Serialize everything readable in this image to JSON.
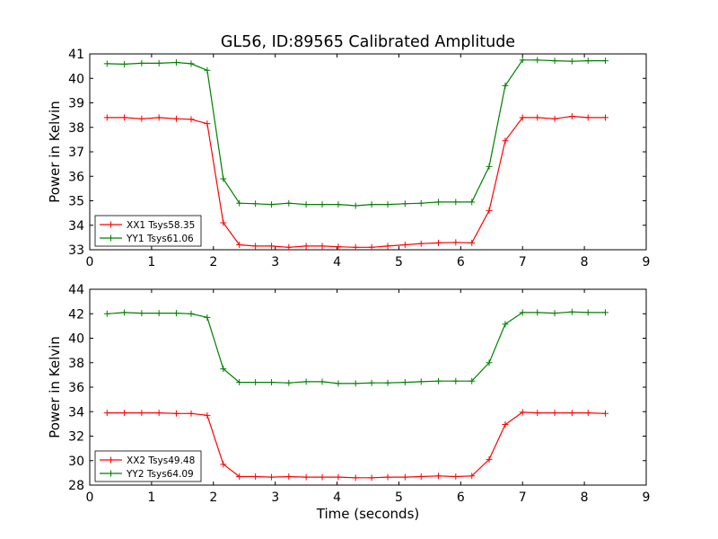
{
  "title": "GL56, ID:89565 Calibrated Amplitude",
  "colors": {
    "red": "#ff0000",
    "green": "#008000"
  },
  "chart_data": [
    {
      "type": "line",
      "xlabel": "",
      "ylabel": "Power in Kelvin",
      "xlim": [
        0,
        9
      ],
      "ylim": [
        33,
        41
      ],
      "xticks": [
        0,
        1,
        2,
        3,
        4,
        5,
        6,
        7,
        8,
        9
      ],
      "yticks": [
        33,
        34,
        35,
        36,
        37,
        38,
        39,
        40,
        41
      ],
      "grid": false,
      "legend_position": "lower-left",
      "x": [
        0.28,
        0.56,
        0.84,
        1.12,
        1.4,
        1.64,
        1.9,
        2.16,
        2.42,
        2.68,
        2.94,
        3.22,
        3.5,
        3.76,
        4.02,
        4.3,
        4.56,
        4.82,
        5.1,
        5.36,
        5.64,
        5.92,
        6.18,
        6.46,
        6.72,
        7.0,
        7.24,
        7.52,
        7.8,
        8.06,
        8.34
      ],
      "series": [
        {
          "name": "XX1 Tsys58.35",
          "color": "#ff0000",
          "values": [
            38.4,
            38.4,
            38.35,
            38.4,
            38.35,
            38.33,
            38.15,
            34.1,
            33.2,
            33.15,
            33.15,
            33.1,
            33.15,
            33.15,
            33.12,
            33.1,
            33.1,
            33.15,
            33.2,
            33.25,
            33.28,
            33.3,
            33.28,
            34.6,
            37.45,
            38.4,
            38.4,
            38.35,
            38.45,
            38.4,
            38.4
          ]
        },
        {
          "name": "YY1 Tsys61.06",
          "color": "#008000",
          "values": [
            40.6,
            40.58,
            40.62,
            40.62,
            40.65,
            40.6,
            40.33,
            35.9,
            34.9,
            34.88,
            34.85,
            34.9,
            34.85,
            34.85,
            34.85,
            34.8,
            34.85,
            34.85,
            34.88,
            34.9,
            34.95,
            34.95,
            34.95,
            36.4,
            39.7,
            40.75,
            40.75,
            40.72,
            40.7,
            40.72,
            40.72
          ]
        }
      ]
    },
    {
      "type": "line",
      "xlabel": "Time (seconds)",
      "ylabel": "Power in Kelvin",
      "xlim": [
        0,
        9
      ],
      "ylim": [
        28,
        44
      ],
      "xticks": [
        0,
        1,
        2,
        3,
        4,
        5,
        6,
        7,
        8,
        9
      ],
      "yticks": [
        28,
        30,
        32,
        34,
        36,
        38,
        40,
        42,
        44
      ],
      "grid": false,
      "legend_position": "lower-left",
      "x": [
        0.28,
        0.56,
        0.84,
        1.12,
        1.4,
        1.64,
        1.9,
        2.16,
        2.42,
        2.68,
        2.94,
        3.22,
        3.5,
        3.76,
        4.02,
        4.3,
        4.56,
        4.82,
        5.1,
        5.36,
        5.64,
        5.92,
        6.18,
        6.46,
        6.72,
        7.0,
        7.24,
        7.52,
        7.8,
        8.06,
        8.34
      ],
      "series": [
        {
          "name": "XX2 Tsys49.48",
          "color": "#ff0000",
          "values": [
            33.9,
            33.9,
            33.9,
            33.9,
            33.85,
            33.85,
            33.7,
            29.7,
            28.7,
            28.7,
            28.65,
            28.7,
            28.65,
            28.65,
            28.65,
            28.6,
            28.6,
            28.65,
            28.65,
            28.7,
            28.75,
            28.7,
            28.75,
            30.1,
            32.95,
            33.95,
            33.9,
            33.9,
            33.9,
            33.9,
            33.85
          ]
        },
        {
          "name": "YY2 Tsys64.09",
          "color": "#008000",
          "values": [
            42.0,
            42.1,
            42.05,
            42.05,
            42.05,
            42.0,
            41.7,
            37.5,
            36.4,
            36.4,
            36.4,
            36.35,
            36.45,
            36.45,
            36.3,
            36.3,
            36.35,
            36.35,
            36.4,
            36.45,
            36.5,
            36.5,
            36.5,
            38.0,
            41.15,
            42.1,
            42.1,
            42.05,
            42.15,
            42.1,
            42.1
          ]
        }
      ]
    }
  ]
}
